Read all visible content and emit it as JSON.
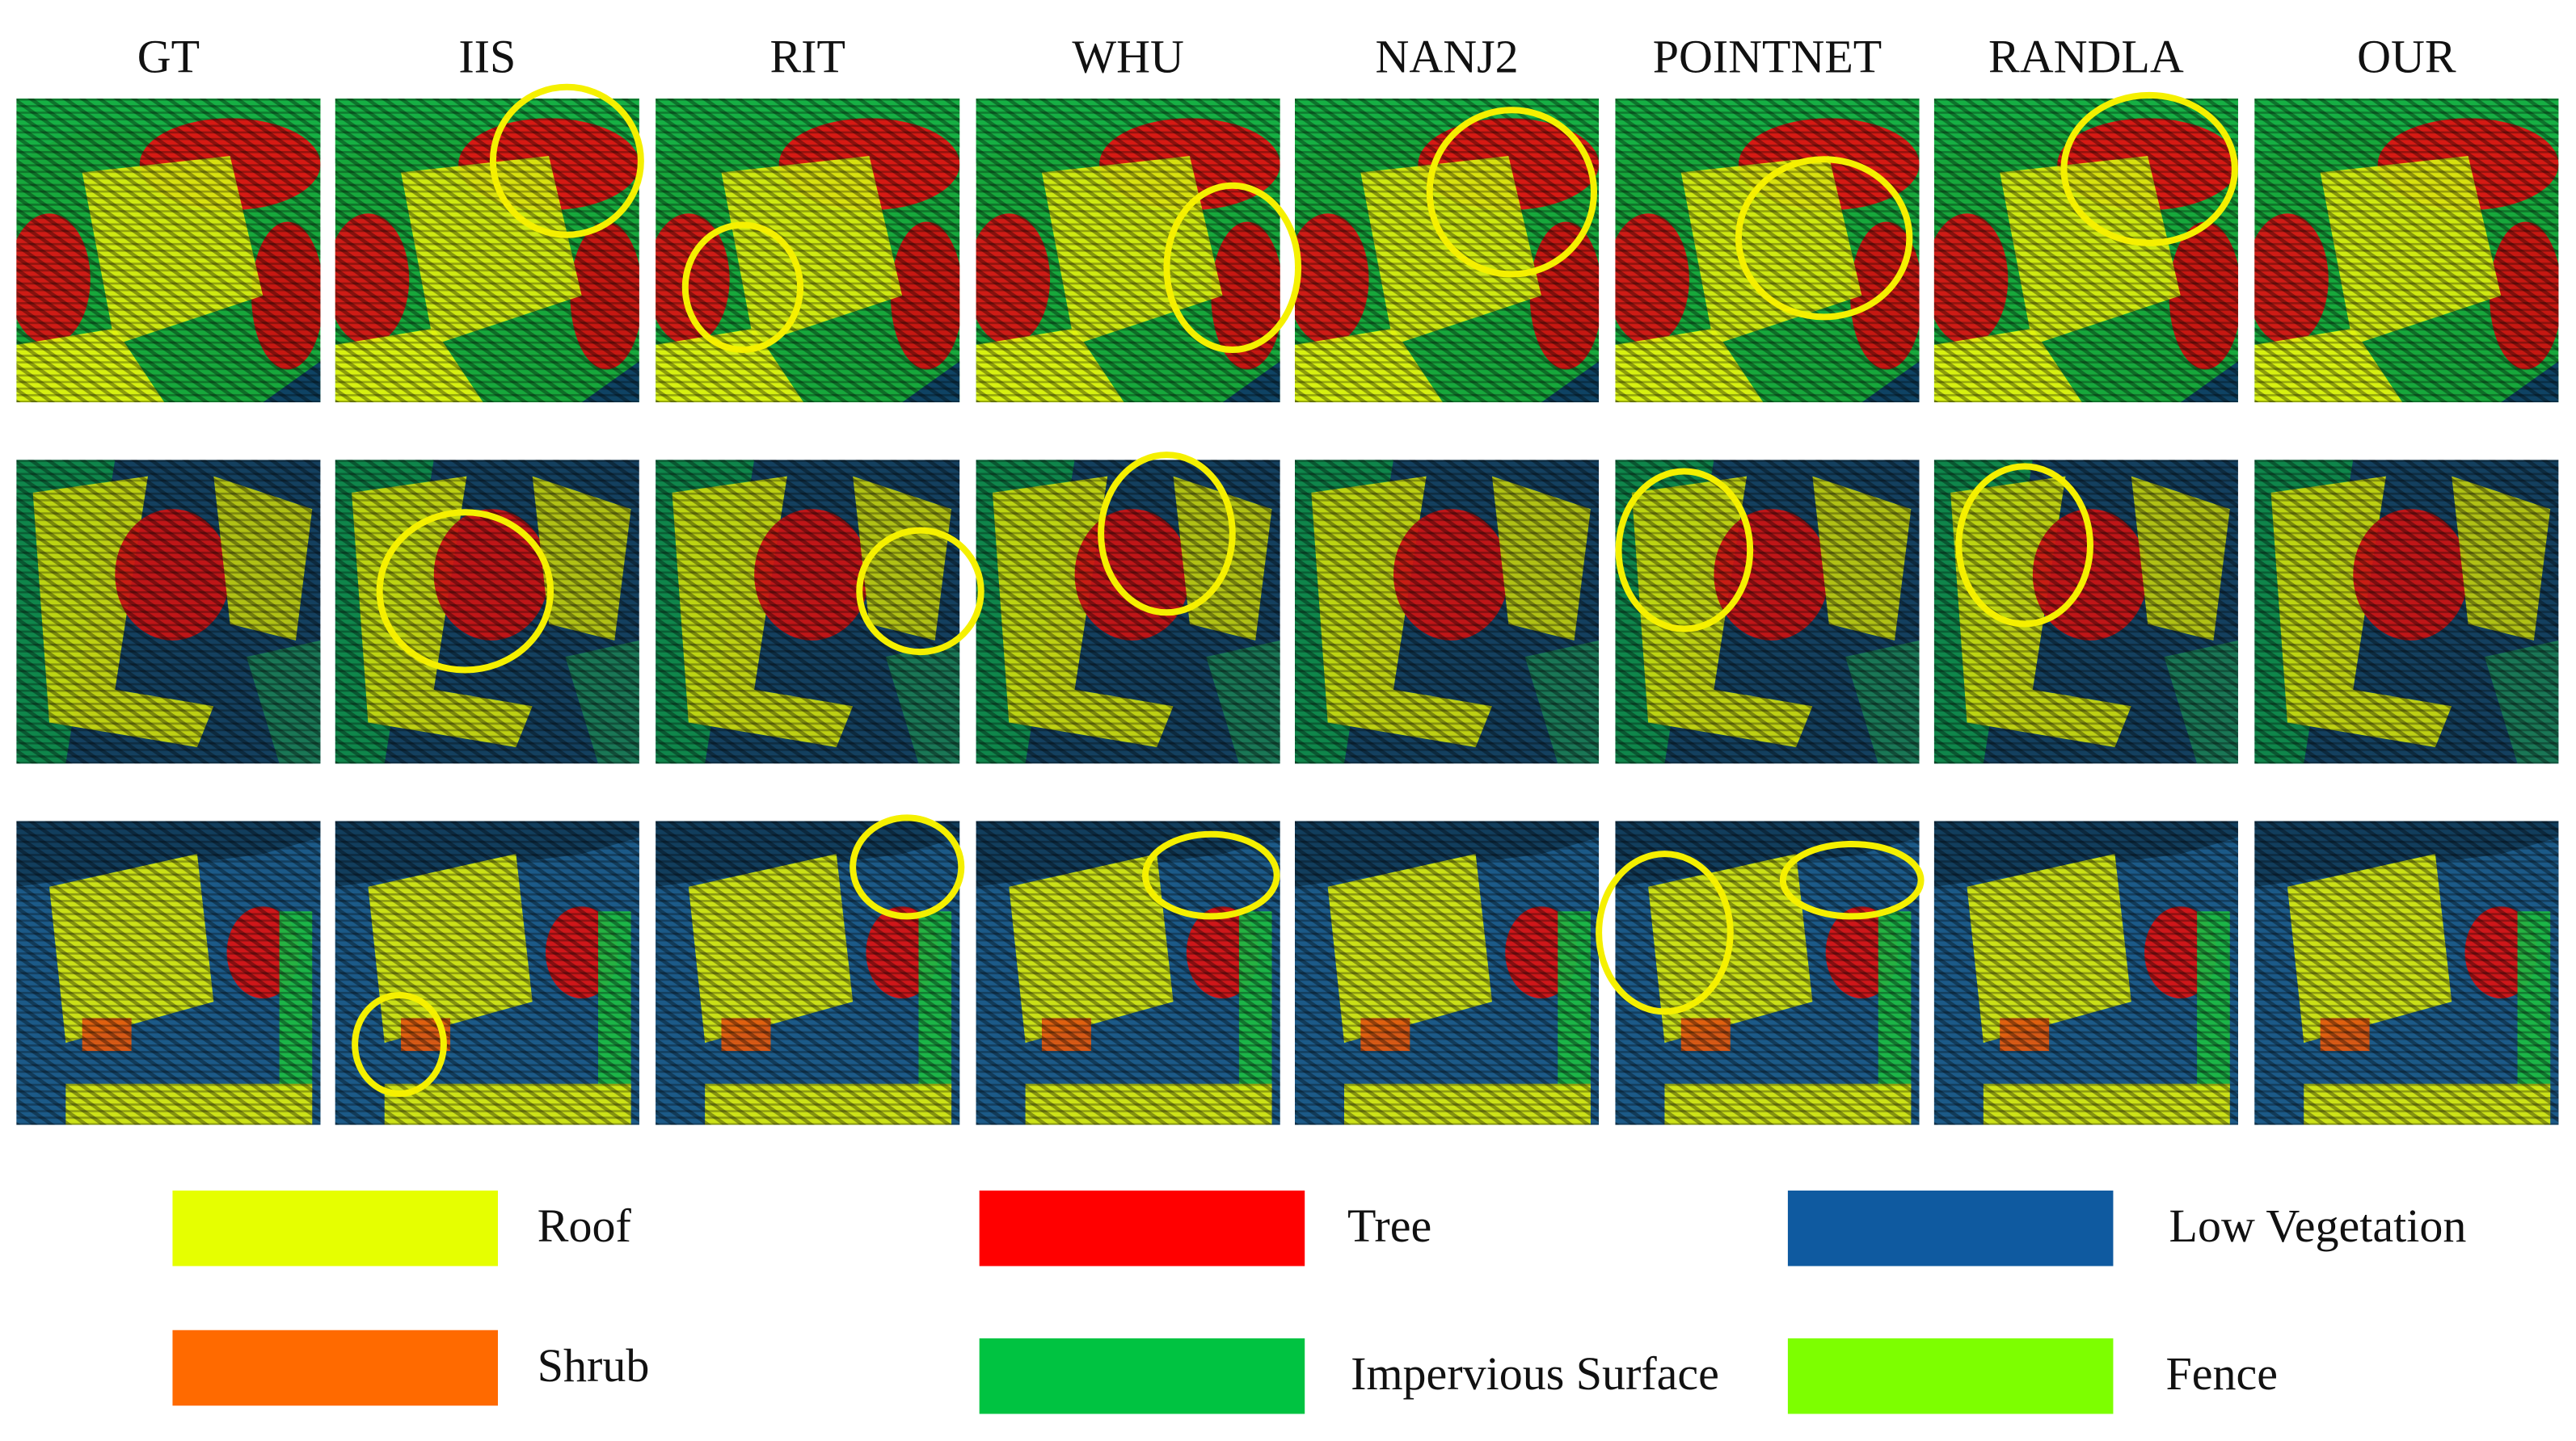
{
  "headers": [
    "GT",
    "IIS",
    "RIT",
    "WHU",
    "NANJ2",
    "POINTNET",
    "RANDLA",
    "OUR"
  ],
  "legend": [
    {
      "label": "Roof",
      "color": "#e6ff00"
    },
    {
      "label": "Tree",
      "color": "#ff0000"
    },
    {
      "label": "Low Vegetation",
      "color": "#0f5aa0"
    },
    {
      "label": "Shrub",
      "color": "#ff6a00"
    },
    {
      "label": "Impervious Surface",
      "color": "#00c341"
    },
    {
      "label": "Fence",
      "color": "#7dff00"
    }
  ]
}
